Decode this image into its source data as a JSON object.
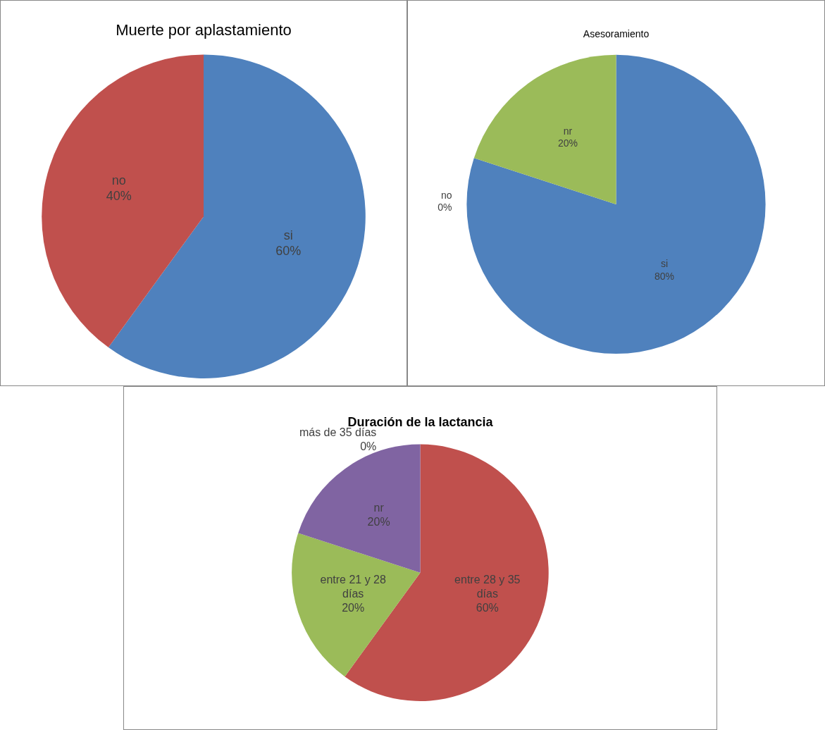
{
  "chart_data": [
    {
      "type": "pie",
      "title": "Muerte por aplastamiento",
      "categories": [
        "si",
        "no"
      ],
      "values": [
        60,
        40
      ],
      "colors": [
        "#4f81bd",
        "#c0504d"
      ],
      "value_labels": [
        "60%",
        "40%"
      ],
      "legend": false
    },
    {
      "type": "pie",
      "title": "Asesoramiento",
      "categories": [
        "si",
        "no",
        "nr"
      ],
      "values": [
        80,
        0,
        20
      ],
      "colors": [
        "#4f81bd",
        "#c0504d",
        "#9bbb59"
      ],
      "value_labels": [
        "80%",
        "0%",
        "20%"
      ],
      "legend": false
    },
    {
      "type": "pie",
      "title": "Duración de la lactancia",
      "categories": [
        "entre 28 y 35 días",
        "entre 21 y 28 días",
        "nr",
        "más de 35 días"
      ],
      "values": [
        60,
        20,
        20,
        0
      ],
      "colors": [
        "#c0504d",
        "#9bbb59",
        "#8064a2",
        "#4f81bd"
      ],
      "value_labels": [
        "60%",
        "20%",
        "20%",
        "0%"
      ],
      "legend": false
    }
  ]
}
